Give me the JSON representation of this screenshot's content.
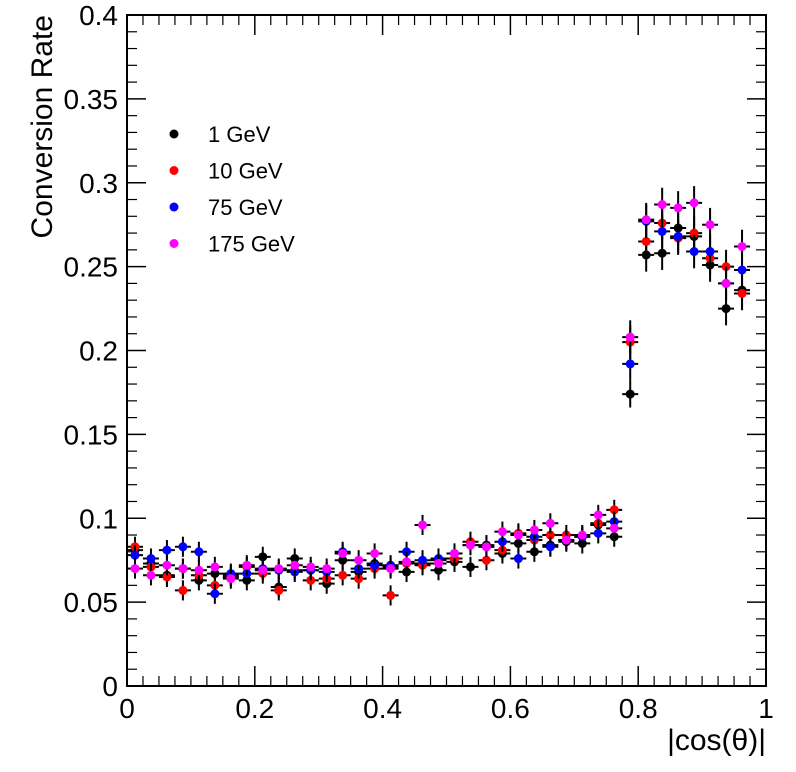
{
  "chart_data": {
    "type": "scatter",
    "title": "",
    "xlabel": "|cos(θ)|",
    "ylabel": "Conversion Rate",
    "xlim": [
      0,
      1
    ],
    "ylim": [
      0,
      0.4
    ],
    "x_ticks": [
      0,
      0.2,
      0.4,
      0.6,
      0.8,
      1
    ],
    "x_tick_labels": [
      "0",
      "0.2",
      "0.4",
      "0.6",
      "0.8",
      "1"
    ],
    "y_ticks": [
      0,
      0.05,
      0.1,
      0.15,
      0.2,
      0.25,
      0.3,
      0.35,
      0.4
    ],
    "y_tick_labels": [
      "0",
      "0.05",
      "0.1",
      "0.15",
      "0.2",
      "0.25",
      "0.3",
      "0.35",
      "0.4"
    ],
    "grid": false,
    "legend_position": "top-left",
    "x": [
      0.0125,
      0.0375,
      0.0625,
      0.0875,
      0.1125,
      0.1375,
      0.1625,
      0.1875,
      0.2125,
      0.2375,
      0.2625,
      0.2875,
      0.3125,
      0.3375,
      0.3625,
      0.3875,
      0.4125,
      0.4375,
      0.4625,
      0.4875,
      0.5125,
      0.5375,
      0.5625,
      0.5875,
      0.6125,
      0.6375,
      0.6625,
      0.6875,
      0.7125,
      0.7375,
      0.7625,
      0.7875,
      0.8125,
      0.8375,
      0.8625,
      0.8875,
      0.9125,
      0.9375,
      0.9625
    ],
    "x_error": 0.0125,
    "series": [
      {
        "name": "1 GeV",
        "color": "#000000",
        "values": [
          0.081,
          0.073,
          0.066,
          0.07,
          0.063,
          0.067,
          0.065,
          0.063,
          0.077,
          0.059,
          0.076,
          0.069,
          0.061,
          0.075,
          0.068,
          0.073,
          0.071,
          0.068,
          0.073,
          0.069,
          0.074,
          0.071,
          0.084,
          0.079,
          0.085,
          0.08,
          0.084,
          0.086,
          0.085,
          0.096,
          0.089,
          0.174,
          0.257,
          0.258,
          0.273,
          0.268,
          0.251,
          0.225,
          0.236
        ],
        "y_error": [
          0.006,
          0.006,
          0.006,
          0.006,
          0.006,
          0.006,
          0.006,
          0.006,
          0.006,
          0.006,
          0.006,
          0.006,
          0.006,
          0.006,
          0.006,
          0.006,
          0.006,
          0.006,
          0.006,
          0.006,
          0.006,
          0.006,
          0.006,
          0.006,
          0.006,
          0.006,
          0.006,
          0.006,
          0.006,
          0.006,
          0.006,
          0.008,
          0.01,
          0.01,
          0.01,
          0.01,
          0.01,
          0.01,
          0.01
        ]
      },
      {
        "name": "10 GeV",
        "color": "#ff0000",
        "values": [
          0.083,
          0.071,
          0.065,
          0.057,
          0.066,
          0.06,
          0.066,
          0.071,
          0.067,
          0.057,
          0.069,
          0.063,
          0.064,
          0.066,
          0.064,
          0.07,
          0.054,
          0.073,
          0.072,
          0.075,
          0.076,
          0.086,
          0.075,
          0.081,
          0.091,
          0.087,
          0.09,
          0.09,
          0.089,
          0.097,
          0.105,
          0.205,
          0.265,
          0.276,
          0.267,
          0.27,
          0.255,
          0.25,
          0.234
        ],
        "y_error": [
          0.006,
          0.006,
          0.006,
          0.006,
          0.006,
          0.006,
          0.006,
          0.006,
          0.006,
          0.006,
          0.006,
          0.006,
          0.006,
          0.006,
          0.006,
          0.006,
          0.006,
          0.006,
          0.006,
          0.006,
          0.006,
          0.006,
          0.006,
          0.006,
          0.006,
          0.006,
          0.006,
          0.006,
          0.006,
          0.006,
          0.006,
          0.01,
          0.01,
          0.01,
          0.01,
          0.01,
          0.01,
          0.01,
          0.01
        ]
      },
      {
        "name": "75 GeV",
        "color": "#0000ff",
        "values": [
          0.078,
          0.076,
          0.081,
          0.083,
          0.08,
          0.055,
          0.067,
          0.067,
          0.07,
          0.069,
          0.068,
          0.069,
          0.068,
          0.08,
          0.07,
          0.072,
          0.072,
          0.08,
          0.075,
          0.076,
          0.079,
          0.084,
          0.083,
          0.086,
          0.076,
          0.089,
          0.083,
          0.087,
          0.089,
          0.091,
          0.098,
          0.192,
          0.277,
          0.271,
          0.268,
          0.259,
          0.259,
          0.24,
          0.248
        ],
        "y_error": [
          0.006,
          0.006,
          0.006,
          0.006,
          0.006,
          0.006,
          0.006,
          0.006,
          0.006,
          0.006,
          0.006,
          0.006,
          0.006,
          0.006,
          0.006,
          0.006,
          0.006,
          0.006,
          0.006,
          0.006,
          0.006,
          0.006,
          0.006,
          0.006,
          0.006,
          0.006,
          0.006,
          0.006,
          0.006,
          0.006,
          0.006,
          0.01,
          0.01,
          0.01,
          0.01,
          0.01,
          0.01,
          0.01,
          0.01
        ]
      },
      {
        "name": "175 GeV",
        "color": "#ff00ff",
        "values": [
          0.07,
          0.066,
          0.072,
          0.07,
          0.069,
          0.071,
          0.064,
          0.072,
          0.069,
          0.07,
          0.072,
          0.071,
          0.07,
          0.079,
          0.075,
          0.079,
          0.07,
          0.074,
          0.096,
          0.073,
          0.079,
          0.084,
          0.083,
          0.092,
          0.09,
          0.093,
          0.097,
          0.087,
          0.09,
          0.102,
          0.094,
          0.208,
          0.278,
          0.287,
          0.285,
          0.288,
          0.275,
          0.24,
          0.262
        ],
        "y_error": [
          0.006,
          0.006,
          0.006,
          0.006,
          0.006,
          0.006,
          0.006,
          0.006,
          0.006,
          0.006,
          0.006,
          0.006,
          0.006,
          0.006,
          0.006,
          0.006,
          0.006,
          0.006,
          0.006,
          0.006,
          0.006,
          0.006,
          0.006,
          0.006,
          0.006,
          0.006,
          0.006,
          0.006,
          0.006,
          0.006,
          0.006,
          0.01,
          0.01,
          0.01,
          0.01,
          0.01,
          0.01,
          0.01,
          0.01
        ]
      }
    ]
  }
}
